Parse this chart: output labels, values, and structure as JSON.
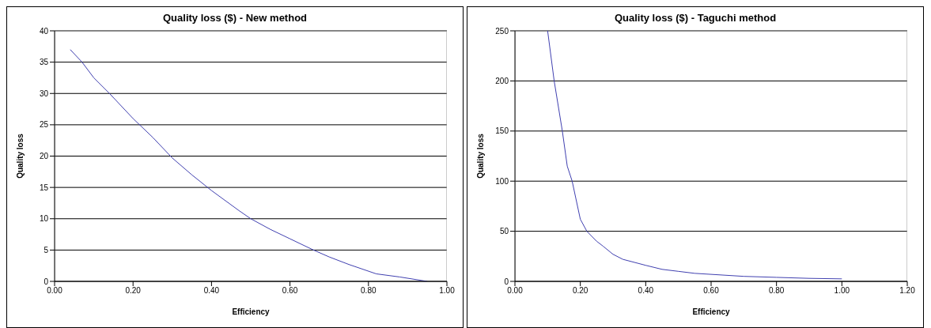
{
  "chart_data": [
    {
      "type": "line",
      "title": "Quality loss ($) - New method",
      "xlabel": "Efficiency",
      "ylabel": "Quality loss",
      "grid": "y",
      "legend": false,
      "marker": "none",
      "line_style": "solid",
      "x": [
        0.04,
        0.07,
        0.1,
        0.14,
        0.2,
        0.25,
        0.3,
        0.35,
        0.4,
        0.47,
        0.5,
        0.55,
        0.6,
        0.66,
        0.7,
        0.75,
        0.82,
        0.88,
        0.95
      ],
      "series": [
        {
          "color": "#4040b0",
          "values": [
            37,
            35,
            32.5,
            30,
            26,
            23,
            19.7,
            17,
            14.5,
            11.3,
            10,
            8.3,
            6.8,
            5,
            3.9,
            2.7,
            1.2,
            0.7,
            0
          ]
        }
      ],
      "xlim": [
        0,
        1
      ],
      "xticks": [
        {
          "value": 0,
          "label": "0.00"
        },
        {
          "value": 0.2,
          "label": "0.20"
        },
        {
          "value": 0.4,
          "label": "0.40"
        },
        {
          "value": 0.6,
          "label": "0.60"
        },
        {
          "value": 0.8,
          "label": "0.80"
        },
        {
          "value": 1,
          "label": "1.00"
        }
      ],
      "ylim": [
        0,
        40
      ],
      "yticks": [
        0,
        5,
        10,
        15,
        20,
        25,
        30,
        35,
        40
      ]
    },
    {
      "type": "line",
      "title": "Quality loss ($) - Taguchi method",
      "xlabel": "Efficiency",
      "ylabel": "Quality loss",
      "grid": "y",
      "legend": false,
      "marker": "none",
      "line_style": "solid",
      "x": [
        0.1,
        0.12,
        0.145,
        0.16,
        0.175,
        0.2,
        0.22,
        0.25,
        0.27,
        0.3,
        0.33,
        0.4,
        0.45,
        0.5,
        0.55,
        0.6,
        0.7,
        0.8,
        0.9,
        1.0
      ],
      "series": [
        {
          "color": "#4040b0",
          "values": [
            250,
            200,
            150,
            115,
            100,
            62,
            50,
            40,
            35,
            27,
            22,
            16,
            12,
            10,
            8,
            7,
            5,
            4,
            3,
            2.5
          ]
        }
      ],
      "xlim": [
        0,
        1.2
      ],
      "xticks": [
        {
          "value": 0,
          "label": "0.00"
        },
        {
          "value": 0.2,
          "label": "0.20"
        },
        {
          "value": 0.4,
          "label": "0.40"
        },
        {
          "value": 0.6,
          "label": "0.60"
        },
        {
          "value": 0.8,
          "label": "0.80"
        },
        {
          "value": 1,
          "label": "1.00"
        },
        {
          "value": 1.2,
          "label": "1.20"
        }
      ],
      "ylim": [
        0,
        250
      ],
      "yticks": [
        0,
        50,
        100,
        150,
        200,
        250
      ]
    }
  ]
}
